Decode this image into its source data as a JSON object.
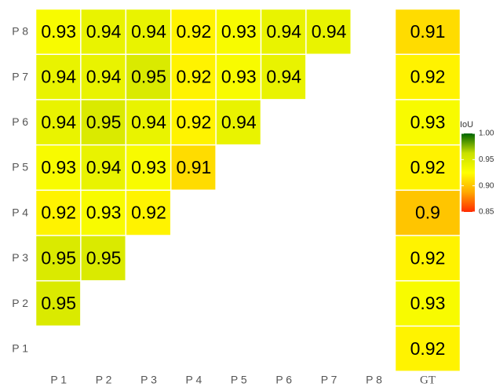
{
  "chart_data": {
    "type": "heatmap",
    "x_categories": [
      "P 1",
      "P 2",
      "P 3",
      "P 4",
      "P 5",
      "P 6",
      "P 7",
      "P 8"
    ],
    "y_categories": [
      "P 1",
      "P 2",
      "P 3",
      "P 4",
      "P 5",
      "P 6",
      "P 7",
      "P 8"
    ],
    "values": [
      [
        null,
        null,
        null,
        null,
        null,
        null,
        null,
        null
      ],
      [
        0.95,
        null,
        null,
        null,
        null,
        null,
        null,
        null
      ],
      [
        0.95,
        0.95,
        null,
        null,
        null,
        null,
        null,
        null
      ],
      [
        0.92,
        0.93,
        0.92,
        null,
        null,
        null,
        null,
        null
      ],
      [
        0.93,
        0.94,
        0.93,
        0.91,
        null,
        null,
        null,
        null
      ],
      [
        0.94,
        0.95,
        0.94,
        0.92,
        0.94,
        null,
        null,
        null
      ],
      [
        0.94,
        0.94,
        0.95,
        0.92,
        0.93,
        0.94,
        null,
        null
      ],
      [
        0.93,
        0.94,
        0.94,
        0.92,
        0.93,
        0.94,
        0.94,
        null
      ]
    ],
    "gt_label": "GT",
    "gt_values": [
      0.92,
      0.93,
      0.92,
      0.9,
      0.92,
      0.93,
      0.92,
      0.91
    ],
    "legend_title": "IoU",
    "colorlim": [
      0.85,
      1
    ],
    "colorticks": [
      {
        "value": 1,
        "label": "1.00"
      },
      0.95,
      {
        "value": 0.9,
        "label": "0.90"
      },
      0.85
    ],
    "colors": [
      "#ff2a00",
      "#ffa800",
      "#ffff00",
      "#c8e000",
      "#006400"
    ]
  }
}
